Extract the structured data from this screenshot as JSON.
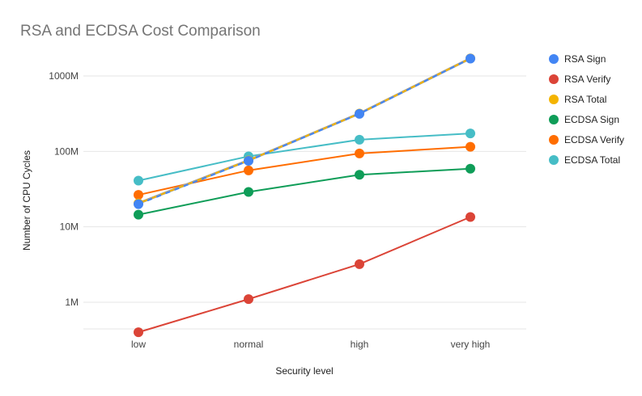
{
  "chart_data": {
    "type": "line",
    "title": "RSA and ECDSA Cost Comparison",
    "xlabel": "Security level",
    "ylabel": "Number of CPU Cycles",
    "y_scale": "log",
    "ylim": [
      400000,
      2000000000
    ],
    "y_ticks": [
      1000000,
      10000000,
      100000000,
      1000000000
    ],
    "y_tick_labels": [
      "1M",
      "10M",
      "100M",
      "1000M"
    ],
    "categories": [
      "low",
      "normal",
      "high",
      "very high"
    ],
    "grid": true,
    "legend_position": "right",
    "series": [
      {
        "name": "RSA Sign",
        "color": "#4285F4",
        "values": [
          20000000,
          75000000,
          315000000,
          1700000000
        ]
      },
      {
        "name": "RSA Verify",
        "color": "#DB4437",
        "values": [
          400000,
          1100000,
          3200000,
          13500000
        ]
      },
      {
        "name": "RSA Total",
        "color": "#F4B400",
        "values": [
          20500000,
          76000000,
          318000000,
          1710000000
        ]
      },
      {
        "name": "ECDSA Sign",
        "color": "#0F9D58",
        "values": [
          14500000,
          29000000,
          49000000,
          59000000
        ]
      },
      {
        "name": "ECDSA Verify",
        "color": "#FF6D00",
        "values": [
          26500000,
          56000000,
          94000000,
          115000000
        ]
      },
      {
        "name": "ECDSA Total",
        "color": "#46BDC6",
        "values": [
          41000000,
          86000000,
          143000000,
          173000000
        ]
      }
    ]
  }
}
